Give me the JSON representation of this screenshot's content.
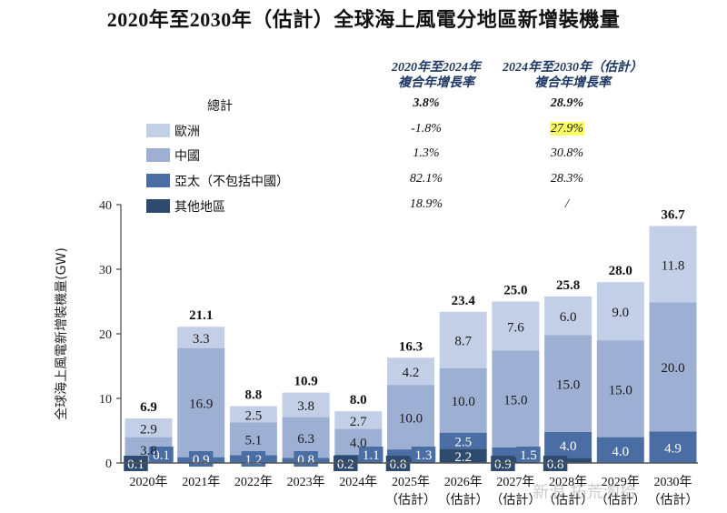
{
  "chart_data": {
    "type": "bar",
    "stacked": true,
    "title": "2020年至2030年（估計）全球海上風電分地區新增裝機量",
    "ylabel": "全球海上風電新增裝機量(GW)",
    "xlabel": "",
    "ylim": [
      0,
      40
    ],
    "yticks": [
      0,
      10,
      20,
      30,
      40
    ],
    "grid": false,
    "legend_position": "top-left",
    "categories": [
      [
        "2020年",
        ""
      ],
      [
        "2021年",
        ""
      ],
      [
        "2022年",
        ""
      ],
      [
        "2023年",
        ""
      ],
      [
        "2024年",
        ""
      ],
      [
        "2025年",
        "（估計）"
      ],
      [
        "2026年",
        "（估計）"
      ],
      [
        "2027年",
        "（估計）"
      ],
      [
        "2028年",
        "（估計）"
      ],
      [
        "2029年",
        "（估計）"
      ],
      [
        "2030年",
        "（估計）"
      ]
    ],
    "series": [
      {
        "name": "其他地區",
        "color": "#2e4a6e",
        "values": [
          0.1,
          0,
          0,
          0,
          0.2,
          0.8,
          2.2,
          0.9,
          0.8,
          0,
          0
        ]
      },
      {
        "name": "亞太（不包括中國）",
        "color": "#4a6ea3",
        "values": [
          0.1,
          0.9,
          1.2,
          0.8,
          1.1,
          1.3,
          2.5,
          1.5,
          4.0,
          4.0,
          4.9
        ]
      },
      {
        "name": "中國",
        "color": "#9db0d3",
        "values": [
          3.8,
          16.9,
          5.1,
          6.3,
          4.0,
          10.0,
          10.0,
          15.0,
          15.0,
          15.0,
          20.0
        ]
      },
      {
        "name": "歐洲",
        "color": "#c3cfe6",
        "values": [
          2.9,
          3.3,
          2.5,
          3.8,
          2.7,
          4.2,
          8.7,
          7.6,
          6.0,
          9.0,
          11.8
        ]
      }
    ],
    "totals": [
      6.9,
      21.1,
      8.8,
      10.9,
      8.0,
      16.3,
      23.4,
      25.0,
      25.8,
      28.0,
      36.7
    ],
    "value_labels": {
      "其他地區": [
        "0.1",
        "",
        "",
        "",
        "0.2",
        "0.8",
        "2.2",
        "0.9",
        "0.8",
        "",
        ""
      ],
      "亞太（不包括中國）": [
        "0.1",
        "0.9",
        "1.2",
        "0.8",
        "1.1",
        "1.3",
        "2.5",
        "1.5",
        "4.0",
        "4.0",
        "4.9"
      ],
      "中國": [
        "3.8",
        "16.9",
        "5.1",
        "6.3",
        "4.0",
        "10.0",
        "10.0",
        "15.0",
        "15.0",
        "15.0",
        "20.0"
      ],
      "歐洲": [
        "2.9",
        "3.3",
        "2.5",
        "3.8",
        "2.7",
        "4.2",
        "8.7",
        "7.6",
        "6.0",
        "9.0",
        "11.8"
      ]
    },
    "cagr_table": {
      "headers": [
        [
          "2020年至2024年",
          "複合年增長率"
        ],
        [
          "2024年至2030年（估計）",
          "複合年增長率"
        ]
      ],
      "rows": [
        {
          "label": "總計",
          "values": [
            "3.8%",
            "28.9%"
          ],
          "bold": true
        },
        {
          "label": "歐洲",
          "values": [
            "-1.8%",
            "27.9%"
          ],
          "highlight_second": true,
          "color": "#c3cfe6"
        },
        {
          "label": "中國",
          "values": [
            "1.3%",
            "30.8%"
          ],
          "color": "#9db0d3"
        },
        {
          "label": "亞太（不包括中國）",
          "values": [
            "82.1%",
            "28.3%"
          ],
          "color": "#4a6ea3"
        },
        {
          "label": "其他地區",
          "values": [
            "18.9%",
            "/"
          ],
          "color": "#2e4a6e"
        }
      ]
    }
  },
  "watermark": "新浪 拓荒淘拾",
  "colors": {
    "axis": "#444444",
    "highlight": "#ffff66",
    "header_text": "#1f3864"
  }
}
